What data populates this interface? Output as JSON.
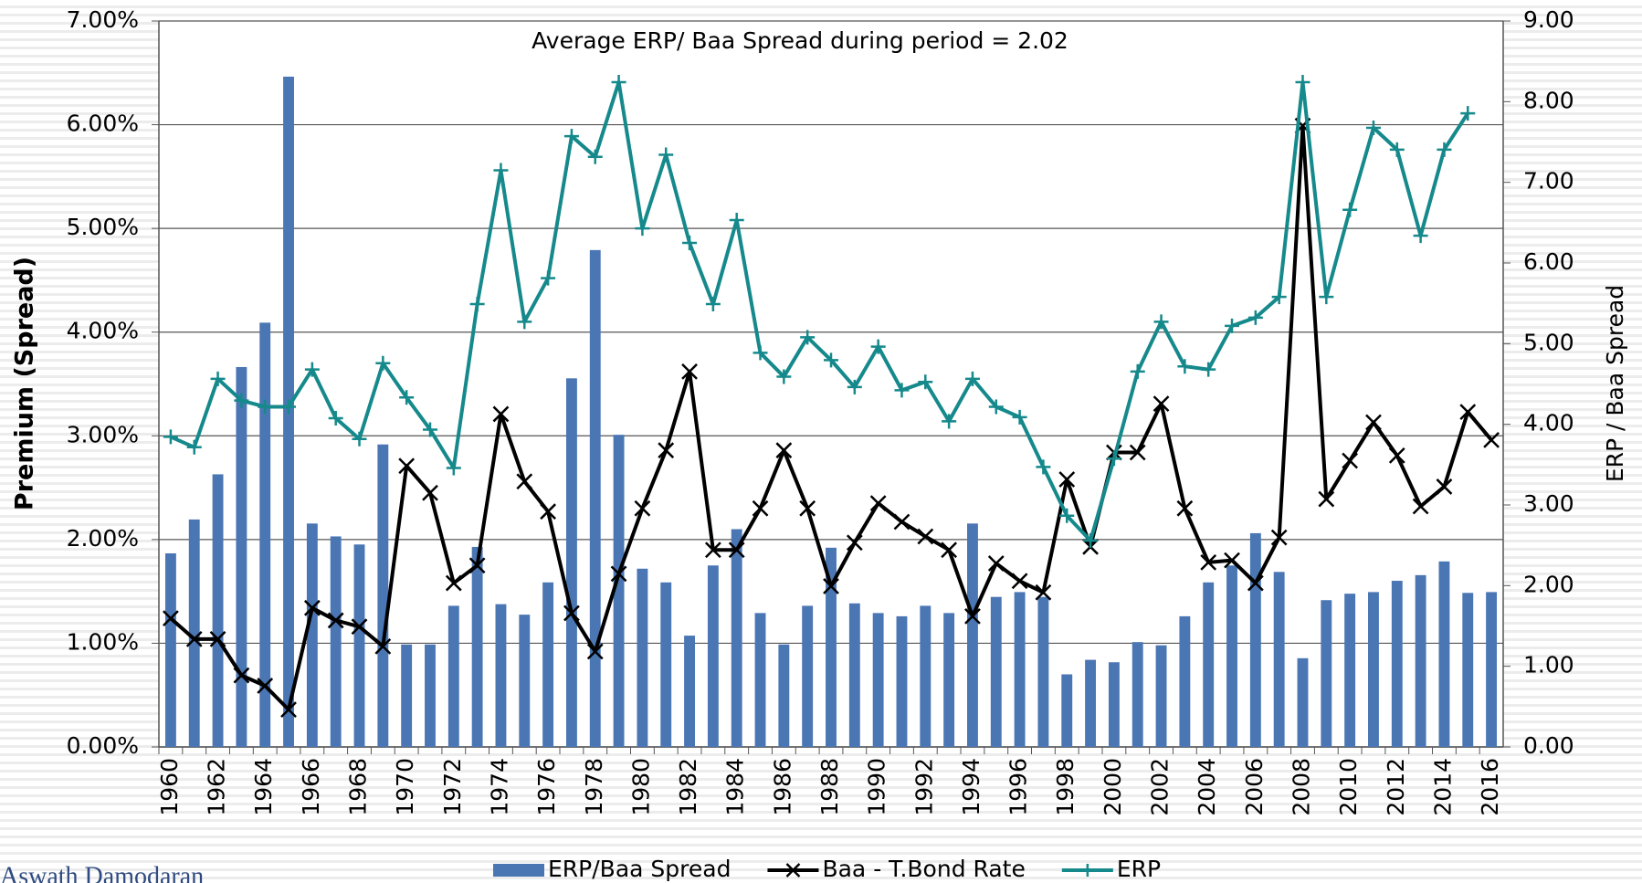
{
  "chart_data": {
    "type": "bar",
    "annotation": "Average ERP/ Baa Spread during period = 2.02",
    "y_label": "Premium (Spread)",
    "y2_label": "ERP / Baa Spread",
    "footer": "Aswath Damodaran",
    "grid": true,
    "legend": "bottom",
    "categories": [
      "1960",
      null,
      "1962",
      null,
      "1964",
      null,
      "1966",
      null,
      "1968",
      null,
      "1970",
      null,
      "1972",
      null,
      "1974",
      null,
      "1976",
      null,
      "1978",
      null,
      "1980",
      null,
      "1982",
      null,
      "1984",
      null,
      "1986",
      null,
      "1988",
      null,
      "1990",
      null,
      "1992",
      null,
      "1994",
      null,
      "1996",
      null,
      "1998",
      null,
      "2000",
      null,
      "2002",
      null,
      "2004",
      null,
      "2006",
      null,
      "2008",
      null,
      "2010",
      null,
      "2012",
      null,
      "2014",
      null,
      "2016"
    ],
    "ylim": [
      0,
      7
    ],
    "yticks": [
      {
        "value": 0,
        "label": "0.00%"
      },
      {
        "value": 1,
        "label": "1.00%"
      },
      {
        "value": 2,
        "label": "2.00%"
      },
      {
        "value": 3,
        "label": "3.00%"
      },
      {
        "value": 4,
        "label": "4.00%"
      },
      {
        "value": 5,
        "label": "5.00%"
      },
      {
        "value": 6,
        "label": "6.00%"
      },
      {
        "value": 7,
        "label": "7.00%"
      }
    ],
    "y2lim": [
      0,
      9
    ],
    "y2ticks": [
      {
        "value": 0,
        "label": "0.00"
      },
      {
        "value": 1,
        "label": "1.00"
      },
      {
        "value": 2,
        "label": "2.00"
      },
      {
        "value": 3,
        "label": "3.00"
      },
      {
        "value": 4,
        "label": "4.00"
      },
      {
        "value": 5,
        "label": "5.00"
      },
      {
        "value": 6,
        "label": "6.00"
      },
      {
        "value": 7,
        "label": "7.00"
      },
      {
        "value": 8,
        "label": "8.00"
      },
      {
        "value": 9,
        "label": "9.00"
      }
    ],
    "series": [
      {
        "name": "ERP/Baa Spread",
        "type": "bar",
        "axis": "y2",
        "color": "#4a76b4",
        "values": [
          2.4,
          2.82,
          3.38,
          4.71,
          5.26,
          8.31,
          2.77,
          2.61,
          2.51,
          3.75,
          1.27,
          1.27,
          1.75,
          2.48,
          1.77,
          1.64,
          2.04,
          4.57,
          6.16,
          3.87,
          2.21,
          2.04,
          1.38,
          2.25,
          2.7,
          1.66,
          1.27,
          1.75,
          2.47,
          1.78,
          1.66,
          1.62,
          1.75,
          1.66,
          2.77,
          1.86,
          1.92,
          1.86,
          0.9,
          1.08,
          1.05,
          1.3,
          1.26,
          1.62,
          2.04,
          2.25,
          2.65,
          2.17,
          1.1,
          1.82,
          1.9,
          1.92,
          2.06,
          2.13,
          2.3,
          1.91,
          1.92
        ]
      },
      {
        "name": "Baa - T.Bond Rate",
        "type": "line",
        "marker": "x",
        "color": "#000000",
        "values": [
          1.24,
          1.04,
          1.04,
          0.69,
          0.59,
          0.36,
          1.34,
          1.22,
          1.16,
          0.97,
          2.71,
          2.45,
          1.58,
          1.75,
          3.21,
          2.56,
          2.27,
          1.29,
          0.92,
          1.67,
          2.3,
          2.86,
          3.62,
          1.9,
          1.9,
          2.3,
          2.86,
          2.3,
          1.55,
          1.97,
          2.35,
          2.17,
          2.03,
          1.9,
          1.26,
          1.77,
          1.6,
          1.49,
          2.58,
          1.93,
          2.84,
          2.84,
          3.31,
          2.3,
          1.78,
          1.8,
          1.58,
          2.02,
          5.99,
          2.39,
          2.76,
          3.13,
          2.81,
          2.32,
          2.51,
          3.23,
          2.96
        ]
      },
      {
        "name": "ERP",
        "type": "line",
        "marker": "+",
        "color": "#15898b",
        "values": [
          2.99,
          2.89,
          3.55,
          3.34,
          3.28,
          3.28,
          3.64,
          3.17,
          2.97,
          3.7,
          3.37,
          3.06,
          2.69,
          4.27,
          5.56,
          4.1,
          4.52,
          5.89,
          5.69,
          6.41,
          5.0,
          5.71,
          4.86,
          4.27,
          5.08,
          3.8,
          3.57,
          3.95,
          3.73,
          3.47,
          3.86,
          3.44,
          3.52,
          3.14,
          3.55,
          3.28,
          3.18,
          2.7,
          2.23,
          1.99,
          2.78,
          3.62,
          4.1,
          3.67,
          3.64,
          4.06,
          4.14,
          4.34,
          6.41,
          4.34,
          5.18,
          5.97,
          5.76,
          4.93,
          5.76,
          6.11,
          null
        ]
      }
    ]
  }
}
